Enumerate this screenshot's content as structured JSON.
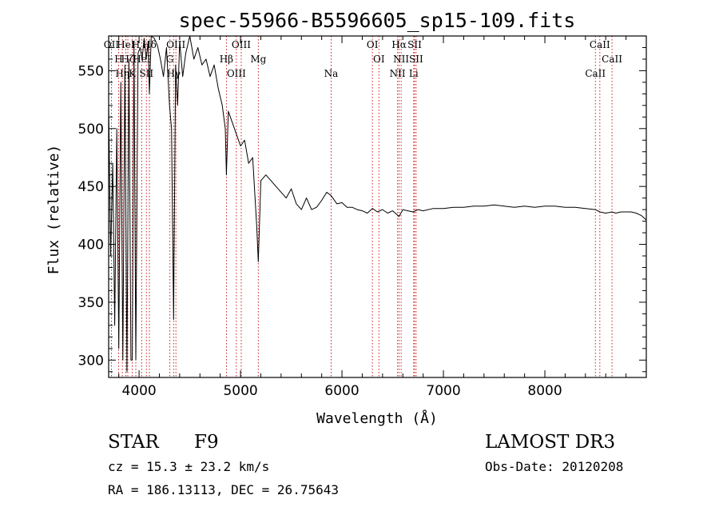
{
  "chart_data": {
    "type": "line",
    "title": "spec-55966-B5596605_sp15-109.fits",
    "xlabel": "Wavelength (Å)",
    "ylabel": "Flux (relative)",
    "xlim": [
      3700,
      9000
    ],
    "ylim": [
      285,
      580
    ],
    "xticks": [
      4000,
      5000,
      6000,
      7000,
      8000
    ],
    "yticks": [
      300,
      350,
      400,
      450,
      500,
      550
    ],
    "series": [
      {
        "name": "spectrum",
        "x": [
          3700,
          3720,
          3740,
          3760,
          3780,
          3800,
          3820,
          3840,
          3860,
          3880,
          3900,
          3920,
          3933,
          3950,
          3968,
          3990,
          4010,
          4030,
          4050,
          4070,
          4090,
          4102,
          4120,
          4150,
          4180,
          4210,
          4240,
          4270,
          4300,
          4320,
          4340,
          4360,
          4380,
          4400,
          4430,
          4460,
          4500,
          4540,
          4580,
          4620,
          4660,
          4700,
          4740,
          4780,
          4820,
          4850,
          4861,
          4880,
          4920,
          4960,
          5000,
          5040,
          5080,
          5120,
          5160,
          5175,
          5200,
          5250,
          5300,
          5350,
          5400,
          5450,
          5500,
          5550,
          5600,
          5650,
          5700,
          5750,
          5800,
          5850,
          5893,
          5950,
          6000,
          6050,
          6100,
          6150,
          6200,
          6250,
          6300,
          6350,
          6400,
          6450,
          6500,
          6563,
          6600,
          6650,
          6700,
          6750,
          6800,
          6900,
          7000,
          7100,
          7200,
          7300,
          7400,
          7500,
          7600,
          7700,
          7800,
          7900,
          8000,
          8100,
          8200,
          8300,
          8400,
          8498,
          8542,
          8600,
          8662,
          8700,
          8750,
          8800,
          8850,
          8900,
          8950,
          9000
        ],
        "values": [
          520,
          390,
          470,
          330,
          500,
          310,
          540,
          300,
          555,
          290,
          560,
          300,
          300,
          575,
          300,
          565,
          570,
          560,
          578,
          560,
          575,
          530,
          580,
          578,
          572,
          560,
          545,
          570,
          520,
          500,
          335,
          555,
          520,
          575,
          545,
          565,
          580,
          560,
          570,
          555,
          560,
          545,
          555,
          535,
          520,
          500,
          460,
          515,
          505,
          495,
          485,
          490,
          470,
          475,
          415,
          385,
          455,
          460,
          455,
          450,
          445,
          440,
          448,
          435,
          430,
          440,
          430,
          432,
          438,
          445,
          442,
          435,
          436,
          432,
          432,
          430,
          429,
          427,
          431,
          428,
          430,
          427,
          429,
          424,
          430,
          429,
          428,
          430,
          429,
          431,
          431,
          432,
          432,
          433,
          433,
          434,
          433,
          432,
          433,
          432,
          433,
          433,
          432,
          432,
          431,
          430,
          428,
          427,
          428,
          427,
          428,
          428,
          428,
          427,
          425,
          421
        ]
      }
    ],
    "lines": [
      {
        "w": 3727,
        "label": "OII"
      },
      {
        "w": 3798,
        "label": "H"
      },
      {
        "w": 3835,
        "label": "Hη"
      },
      {
        "w": 3869,
        "label": "HeI"
      },
      {
        "w": 3889,
        "label": "Hζ"
      },
      {
        "w": 3933,
        "label": "K"
      },
      {
        "w": 3968,
        "label": "H"
      },
      {
        "w": 4026,
        "label": "HeI"
      },
      {
        "w": 4072,
        "label": "SII"
      },
      {
        "w": 4102,
        "label": "Hδ"
      },
      {
        "w": 4304,
        "label": "G"
      },
      {
        "w": 4340,
        "label": "Hγ"
      },
      {
        "w": 4363,
        "label": "OIII"
      },
      {
        "w": 4861,
        "label": "Hβ"
      },
      {
        "w": 4959,
        "label": "OIII"
      },
      {
        "w": 5007,
        "label": "OIII"
      },
      {
        "w": 5175,
        "label": "Mg"
      },
      {
        "w": 5893,
        "label": "Na"
      },
      {
        "w": 6300,
        "label": "OI"
      },
      {
        "w": 6364,
        "label": "OI"
      },
      {
        "w": 6548,
        "label": "NII"
      },
      {
        "w": 6563,
        "label": "Hα"
      },
      {
        "w": 6583,
        "label": "NII"
      },
      {
        "w": 6707,
        "label": "Li"
      },
      {
        "w": 6716,
        "label": "SII"
      },
      {
        "w": 6731,
        "label": "SII"
      },
      {
        "w": 8498,
        "label": "CaII"
      },
      {
        "w": 8542,
        "label": "CaII"
      },
      {
        "w": 8662,
        "label": "CaII"
      }
    ],
    "colors": {
      "spectrum": "#000000",
      "lines": "#cc0000"
    }
  },
  "info": {
    "class_label": "STAR",
    "subclass": "F9",
    "survey": "LAMOST DR3",
    "cz": "cz = 15.3 ± 23.2 km/s",
    "obs_date": "Obs-Date: 20120208",
    "coords": "RA = 186.13113, DEC =  26.75643"
  }
}
